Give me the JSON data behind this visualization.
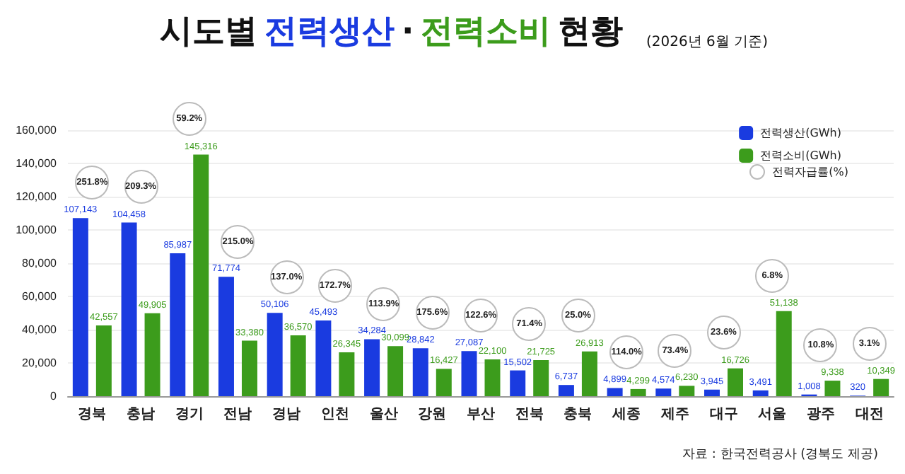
{
  "chart_data": {
    "type": "bar",
    "title": "시도별 전력생산 · 전력소비 현황",
    "subtitle": "(2026년 6월 기준)",
    "categories": [
      "경북",
      "충남",
      "경기",
      "전남",
      "경남",
      "인천",
      "울산",
      "강원",
      "부산",
      "전북",
      "충북",
      "세종",
      "제주",
      "대구",
      "서울",
      "광주",
      "대전"
    ],
    "series": [
      {
        "name": "전력생산(GWh)",
        "color": "#1a3be0",
        "values": [
          107143,
          104458,
          85987,
          71774,
          50106,
          45493,
          34284,
          28842,
          27087,
          15502,
          6737,
          4899,
          4574,
          3945,
          3491,
          1008,
          320
        ],
        "value_labels": [
          "107,143",
          "104,458",
          "85,987",
          "71,774",
          "50,106",
          "45,493",
          "34,284",
          "28,842",
          "27,087",
          "15,502",
          "6,737",
          "4,899",
          "4,574",
          "3,945",
          "3,491",
          "1,008",
          "320"
        ]
      },
      {
        "name": "전력소비(GWh)",
        "color": "#3c9c1c",
        "values": [
          42557,
          49905,
          145316,
          33380,
          36570,
          26345,
          30099,
          16427,
          22100,
          21725,
          26913,
          4299,
          6230,
          16726,
          51138,
          9338,
          10349
        ],
        "value_labels": [
          "42,557",
          "49,905",
          "145,316",
          "33,380",
          "36,570",
          "26,345",
          "30,099",
          "16,427",
          "22,100",
          "21,725",
          "26,913",
          "4,299",
          "6,230",
          "16,726",
          "51,138",
          "9,338",
          "10,349"
        ]
      }
    ],
    "ylim": [
      0,
      160000
    ],
    "yticks": [
      {
        "value": 0,
        "label": "0"
      },
      {
        "value": 20000,
        "label": "20,000"
      },
      {
        "value": 40000,
        "label": "40,000"
      },
      {
        "value": 60000,
        "label": "60,000"
      },
      {
        "value": 80000,
        "label": "80,000"
      },
      {
        "value": 100000,
        "label": "100,000"
      },
      {
        "value": 120000,
        "label": "120,000"
      },
      {
        "value": 140000,
        "label": "140,000"
      },
      {
        "value": 160000,
        "label": "160,000"
      }
    ],
    "grid": "y",
    "legend": "top right",
    "annotations": [
      "전력자급률(%)",
      "자료 : 한국전력공사 (경북도 제공)",
      "251.8%",
      "209.3%",
      "59.2%",
      "215.0%",
      "137.0%",
      "172.7%",
      "113.9%",
      "175.6%",
      "122.6%",
      "71.4%",
      "25.0%",
      "114.0%",
      "73.4%",
      "23.6%",
      "6.8%",
      "10.8%",
      "3.1%"
    ]
  }
}
